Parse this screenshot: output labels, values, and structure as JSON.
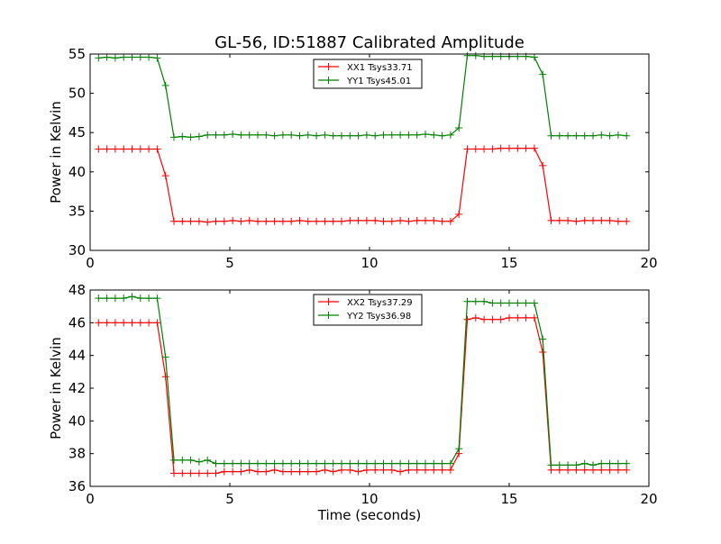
{
  "figure": {
    "title": "GL-56, ID:51887 Calibrated Amplitude",
    "xlabel": "Time (seconds)"
  },
  "chart_data": [
    {
      "type": "line",
      "ylabel": "Power in Kelvin",
      "xlim": [
        0,
        20
      ],
      "ylim": [
        30,
        55
      ],
      "xticks": [
        0,
        5,
        10,
        15,
        20
      ],
      "yticks": [
        30,
        35,
        40,
        45,
        50,
        55
      ],
      "grid": false,
      "legend_position": "top-center",
      "x": [
        0.3,
        0.6,
        0.9,
        1.2,
        1.5,
        1.8,
        2.1,
        2.4,
        2.7,
        3.0,
        3.3,
        3.6,
        3.9,
        4.2,
        4.5,
        4.8,
        5.1,
        5.4,
        5.7,
        6.0,
        6.3,
        6.6,
        6.9,
        7.2,
        7.5,
        7.8,
        8.1,
        8.4,
        8.7,
        9.0,
        9.3,
        9.6,
        9.9,
        10.2,
        10.5,
        10.8,
        11.1,
        11.4,
        11.7,
        12.0,
        12.3,
        12.6,
        12.9,
        13.2,
        13.5,
        13.8,
        14.1,
        14.4,
        14.7,
        15.0,
        15.3,
        15.6,
        15.9,
        16.2,
        16.5,
        16.8,
        17.1,
        17.4,
        17.7,
        18.0,
        18.3,
        18.6,
        18.9,
        19.2
      ],
      "series": [
        {
          "name": "XX1 Tsys33.71",
          "color": "#ff0000",
          "values": [
            42.9,
            42.9,
            42.9,
            42.9,
            42.9,
            42.9,
            42.9,
            42.9,
            39.5,
            33.7,
            33.7,
            33.7,
            33.7,
            33.6,
            33.7,
            33.7,
            33.8,
            33.7,
            33.8,
            33.7,
            33.7,
            33.7,
            33.7,
            33.7,
            33.8,
            33.7,
            33.7,
            33.7,
            33.7,
            33.7,
            33.8,
            33.8,
            33.8,
            33.8,
            33.7,
            33.7,
            33.8,
            33.7,
            33.8,
            33.8,
            33.8,
            33.7,
            33.7,
            34.6,
            42.9,
            42.9,
            42.9,
            42.9,
            43.0,
            43.0,
            43.0,
            43.0,
            43.0,
            40.8,
            33.8,
            33.8,
            33.8,
            33.7,
            33.8,
            33.8,
            33.8,
            33.8,
            33.7,
            33.7
          ]
        },
        {
          "name": "YY1 Tsys45.01",
          "color": "#008000",
          "values": [
            54.5,
            54.6,
            54.5,
            54.6,
            54.6,
            54.6,
            54.6,
            54.5,
            51.0,
            44.4,
            44.5,
            44.4,
            44.5,
            44.7,
            44.7,
            44.7,
            44.8,
            44.7,
            44.7,
            44.7,
            44.7,
            44.6,
            44.7,
            44.7,
            44.6,
            44.7,
            44.6,
            44.7,
            44.6,
            44.6,
            44.6,
            44.6,
            44.7,
            44.6,
            44.7,
            44.7,
            44.7,
            44.7,
            44.7,
            44.8,
            44.7,
            44.6,
            44.7,
            45.6,
            54.8,
            54.8,
            54.7,
            54.7,
            54.7,
            54.7,
            54.7,
            54.7,
            54.6,
            52.4,
            44.6,
            44.6,
            44.6,
            44.6,
            44.6,
            44.6,
            44.7,
            44.6,
            44.7,
            44.6
          ]
        }
      ]
    },
    {
      "type": "line",
      "ylabel": "Power in Kelvin",
      "xlabel": "Time (seconds)",
      "xlim": [
        0,
        20
      ],
      "ylim": [
        36,
        48
      ],
      "xticks": [
        0,
        5,
        10,
        15,
        20
      ],
      "yticks": [
        36,
        38,
        40,
        42,
        44,
        46,
        48
      ],
      "grid": false,
      "legend_position": "top-center",
      "x": [
        0.3,
        0.6,
        0.9,
        1.2,
        1.5,
        1.8,
        2.1,
        2.4,
        2.7,
        3.0,
        3.3,
        3.6,
        3.9,
        4.2,
        4.5,
        4.8,
        5.1,
        5.4,
        5.7,
        6.0,
        6.3,
        6.6,
        6.9,
        7.2,
        7.5,
        7.8,
        8.1,
        8.4,
        8.7,
        9.0,
        9.3,
        9.6,
        9.9,
        10.2,
        10.5,
        10.8,
        11.1,
        11.4,
        11.7,
        12.0,
        12.3,
        12.6,
        12.9,
        13.2,
        13.5,
        13.8,
        14.1,
        14.4,
        14.7,
        15.0,
        15.3,
        15.6,
        15.9,
        16.2,
        16.5,
        16.8,
        17.1,
        17.4,
        17.7,
        18.0,
        18.3,
        18.6,
        18.9,
        19.2
      ],
      "series": [
        {
          "name": "XX2 Tsys37.29",
          "color": "#ff0000",
          "values": [
            46.0,
            46.0,
            46.0,
            46.0,
            46.0,
            46.0,
            46.0,
            46.0,
            42.7,
            36.8,
            36.8,
            36.8,
            36.8,
            36.8,
            36.8,
            36.9,
            36.9,
            36.9,
            37.0,
            36.9,
            36.9,
            37.0,
            36.9,
            36.9,
            36.9,
            36.9,
            36.9,
            37.0,
            36.9,
            37.0,
            37.0,
            36.9,
            37.0,
            37.0,
            37.0,
            37.0,
            36.9,
            37.0,
            37.0,
            37.0,
            37.0,
            37.0,
            37.0,
            38.0,
            46.2,
            46.3,
            46.2,
            46.2,
            46.2,
            46.3,
            46.3,
            46.3,
            46.3,
            44.2,
            37.0,
            37.0,
            37.0,
            37.0,
            37.0,
            37.0,
            37.0,
            37.0,
            37.0,
            37.0
          ]
        },
        {
          "name": "YY2 Tsys36.98",
          "color": "#008000",
          "values": [
            47.5,
            47.5,
            47.5,
            47.5,
            47.6,
            47.5,
            47.5,
            47.5,
            43.9,
            37.6,
            37.6,
            37.6,
            37.5,
            37.6,
            37.4,
            37.4,
            37.4,
            37.4,
            37.4,
            37.4,
            37.4,
            37.4,
            37.4,
            37.4,
            37.4,
            37.4,
            37.4,
            37.4,
            37.4,
            37.4,
            37.4,
            37.4,
            37.4,
            37.4,
            37.4,
            37.4,
            37.4,
            37.4,
            37.4,
            37.4,
            37.4,
            37.4,
            37.4,
            38.3,
            47.3,
            47.3,
            47.3,
            47.2,
            47.2,
            47.2,
            47.2,
            47.2,
            47.2,
            45.0,
            37.3,
            37.3,
            37.3,
            37.3,
            37.4,
            37.3,
            37.4,
            37.4,
            37.4,
            37.4
          ]
        }
      ]
    }
  ]
}
